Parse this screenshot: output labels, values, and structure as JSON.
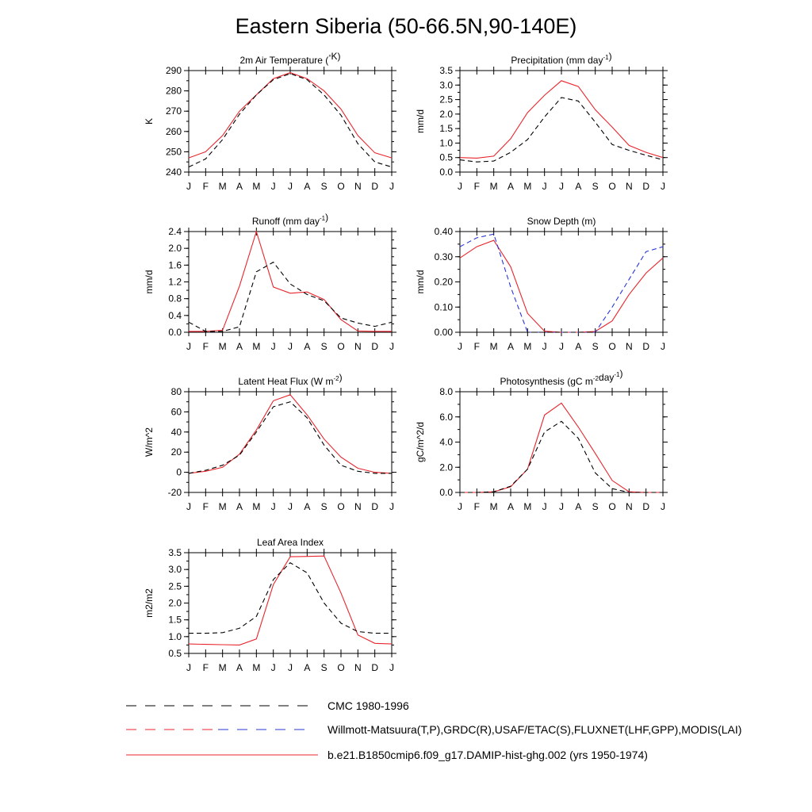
{
  "title": "Eastern Siberia (50-66.5N,90-140E)",
  "months": [
    "J",
    "F",
    "M",
    "A",
    "M",
    "J",
    "J",
    "A",
    "S",
    "O",
    "N",
    "D",
    "J"
  ],
  "colors": {
    "model": "#e8262d",
    "obs": "#000000",
    "obs_alt": "#2a35d8"
  },
  "legend": [
    {
      "label": "CMC 1980-1996",
      "style": "dashed",
      "colors": [
        "#000000"
      ]
    },
    {
      "label": "Willmott-Matsuura(T,P),GRDC(R),USAF/ETAC(S),FLUXNET(LHF,GPP),MODIS(LAI)",
      "style": "dashed",
      "colors": [
        "#e8262d",
        "#2a35d8"
      ]
    },
    {
      "label": "b.e21.B1850cmip6.f09_g17.DAMIP-hist-ghg.002 (yrs 1950-1974)",
      "style": "solid",
      "colors": [
        "#e8262d"
      ]
    }
  ],
  "chart_data": [
    {
      "type": "line",
      "title": "2m Air Temperature (°K)",
      "ylabel": "K",
      "ylim": [
        240,
        290
      ],
      "yticks": [
        "240",
        "250",
        "260",
        "270",
        "280",
        "290"
      ],
      "yminor": 5,
      "series": [
        {
          "style": "solid",
          "color": "#e8262d",
          "values": [
            247,
            250,
            258,
            270,
            278,
            286,
            289,
            286,
            280,
            271,
            258,
            249.5,
            247
          ]
        },
        {
          "style": "dashed",
          "color": "#000000",
          "values": [
            242.5,
            246.5,
            256,
            268.5,
            278,
            285.5,
            288.5,
            285.5,
            278,
            268,
            254,
            245,
            242.5
          ]
        }
      ]
    },
    {
      "type": "line",
      "title": "Precipitation (mm day-1)",
      "ylabel": "mm/d",
      "ylim": [
        0,
        3.5
      ],
      "yticks": [
        "0.0",
        "0.5",
        "1.0",
        "1.5",
        "2.0",
        "2.5",
        "3.0",
        "3.5"
      ],
      "yminor": 0.25,
      "series": [
        {
          "style": "solid",
          "color": "#e8262d",
          "values": [
            0.5,
            0.48,
            0.55,
            1.15,
            2.05,
            2.65,
            3.15,
            2.95,
            2.15,
            1.55,
            0.92,
            0.68,
            0.5
          ]
        },
        {
          "style": "dashed",
          "color": "#000000",
          "values": [
            0.42,
            0.35,
            0.38,
            0.68,
            1.12,
            1.9,
            2.57,
            2.45,
            1.72,
            0.95,
            0.75,
            0.58,
            0.42
          ]
        }
      ]
    },
    {
      "type": "line",
      "title": "Runoff (mm day-1)",
      "ylabel": "mm/d",
      "ylim": [
        0,
        2.4
      ],
      "yticks": [
        "0.0",
        "0.4",
        "0.8",
        "1.2",
        "1.6",
        "2.0",
        "2.4"
      ],
      "yminor": 0.2,
      "series": [
        {
          "style": "solid",
          "color": "#e8262d",
          "values": [
            0.02,
            0.02,
            0.05,
            1.1,
            2.4,
            1.08,
            0.93,
            0.96,
            0.78,
            0.3,
            0.03,
            0.02,
            0.02
          ]
        },
        {
          "style": "dashed",
          "color": "#000000",
          "values": [
            0.24,
            0.02,
            0.02,
            0.13,
            1.44,
            1.67,
            1.15,
            0.9,
            0.75,
            0.34,
            0.22,
            0.14,
            0.24
          ]
        }
      ]
    },
    {
      "type": "line",
      "title": "Snow Depth (m)",
      "ylabel": "mm/d",
      "ylim": [
        0,
        0.4
      ],
      "yticks": [
        "0.00",
        "0.10",
        "0.20",
        "0.30",
        "0.40"
      ],
      "yminor": 0.05,
      "series": [
        {
          "style": "solid",
          "color": "#e8262d",
          "values": [
            0.295,
            0.34,
            0.365,
            0.26,
            0.075,
            0.004,
            0.0,
            0.0,
            0.003,
            0.045,
            0.15,
            0.235,
            0.295
          ]
        },
        {
          "style": "dashed",
          "color": "#2a35d8",
          "values": [
            0.34,
            0.375,
            0.39,
            0.18,
            0.0,
            0.0,
            0.0,
            0.0,
            0.0,
            0.1,
            0.21,
            0.32,
            0.34
          ]
        },
        {
          "style": "dashed",
          "color": "#000000",
          "values": [
            0.0,
            0.0,
            0.0,
            0.0,
            0.0,
            0.0,
            0.0,
            0.0,
            0.0,
            0.0,
            0.0,
            0.0,
            0.0
          ]
        }
      ]
    },
    {
      "type": "line",
      "title": "Latent Heat Flux (W m-2)",
      "ylabel": "W/m^2",
      "ylim": [
        -20,
        80
      ],
      "yticks": [
        "-20",
        "0",
        "20",
        "40",
        "60",
        "80"
      ],
      "yminor": 10,
      "series": [
        {
          "style": "solid",
          "color": "#e8262d",
          "values": [
            -1,
            1,
            5,
            18,
            42,
            71,
            77,
            57,
            33,
            15,
            4,
            0,
            -1
          ]
        },
        {
          "style": "dashed",
          "color": "#000000",
          "values": [
            -1,
            2,
            7,
            17,
            40,
            65,
            70,
            54,
            27,
            7,
            1,
            -1,
            -1
          ]
        }
      ]
    },
    {
      "type": "line",
      "title": "Photosynthesis (gC m-2day-1)",
      "ylabel": "gC/m^2/d",
      "ylim": [
        0,
        8
      ],
      "yticks": [
        "0.0",
        "2.0",
        "4.0",
        "6.0",
        "8.0"
      ],
      "yminor": 1,
      "series": [
        {
          "style": "solid",
          "color": "#e8262d",
          "values": [
            0.0,
            0.0,
            0.05,
            0.45,
            1.85,
            6.15,
            7.1,
            5.2,
            3.1,
            0.95,
            0.05,
            0.0,
            0.0
          ]
        },
        {
          "style": "dashed",
          "color": "#000000",
          "values": [
            0.0,
            0.0,
            0.05,
            0.5,
            1.85,
            4.8,
            5.65,
            4.3,
            1.55,
            0.3,
            0.0,
            0.0,
            0.0
          ]
        }
      ]
    },
    {
      "type": "line",
      "title": "Leaf Area Index",
      "ylabel": "m2/m2",
      "ylim": [
        0.5,
        3.5
      ],
      "yticks": [
        "0.5",
        "1.0",
        "1.5",
        "2.0",
        "2.5",
        "3.0",
        "3.5"
      ],
      "yminor": 0.25,
      "series": [
        {
          "style": "solid",
          "color": "#e8262d",
          "values": [
            0.78,
            0.77,
            0.76,
            0.75,
            0.93,
            2.55,
            3.38,
            3.39,
            3.4,
            2.3,
            1.05,
            0.8,
            0.78
          ]
        },
        {
          "style": "dashed",
          "color": "#000000",
          "values": [
            1.1,
            1.1,
            1.12,
            1.25,
            1.6,
            2.7,
            3.2,
            2.9,
            2.0,
            1.4,
            1.15,
            1.1,
            1.1
          ]
        }
      ]
    }
  ]
}
